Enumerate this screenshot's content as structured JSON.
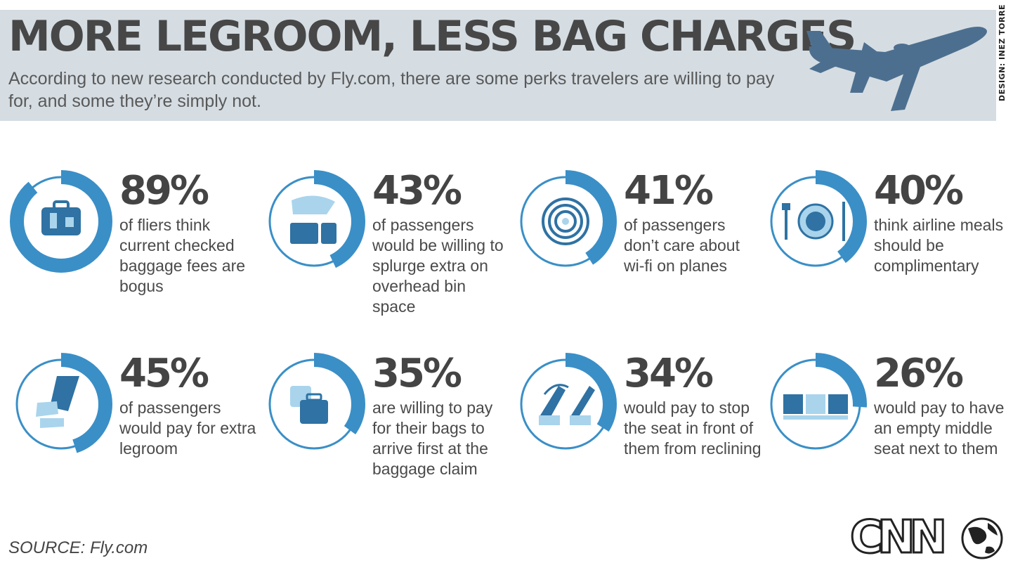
{
  "header": {
    "title": "MORE LEGROOM, LESS BAG CHARGES",
    "subtitle": "According to new research conducted by Fly.com, there are some perks travelers are willing to pay for, and some they’re simply not.",
    "design_credit": "DESIGN: INEZ TORRE"
  },
  "chart_data": {
    "type": "pie",
    "unit": "%",
    "items": [
      {
        "label": "89%",
        "value": 89,
        "text": "of fliers think current checked baggage fees are bogus",
        "icon": "suitcase-icon"
      },
      {
        "label": "43%",
        "value": 43,
        "text": "of passengers would be willing to splurge extra on overhead bin space",
        "icon": "overhead-bin-icon"
      },
      {
        "label": "41%",
        "value": 41,
        "text": "of passengers don’t care about wi-fi on planes",
        "icon": "wifi-icon"
      },
      {
        "label": "40%",
        "value": 40,
        "text": "think airline meals should be complimentary",
        "icon": "plate-utensils-icon"
      },
      {
        "label": "45%",
        "value": 45,
        "text": "of passengers would pay for extra legroom",
        "icon": "legs-icon"
      },
      {
        "label": "35%",
        "value": 35,
        "text": "are willing to pay for their bags to arrive first at the baggage claim",
        "icon": "stacked-bags-icon"
      },
      {
        "label": "34%",
        "value": 34,
        "text": "would pay to stop the seat in front of them from reclining",
        "icon": "reclining-seat-icon"
      },
      {
        "label": "26%",
        "value": 26,
        "text": "would pay to have an empty middle seat next to them",
        "icon": "three-seats-icon"
      }
    ]
  },
  "footer": {
    "source": "SOURCE: Fly.com",
    "logo_text": "CNN"
  },
  "colors": {
    "header_bg": "#d5dde3",
    "ring_fill": "#3a8fc7",
    "ring_track": "#ffffff",
    "icon_dark": "#2f72a3",
    "icon_light": "#a9d4ec",
    "plane": "#4d6f8f"
  }
}
